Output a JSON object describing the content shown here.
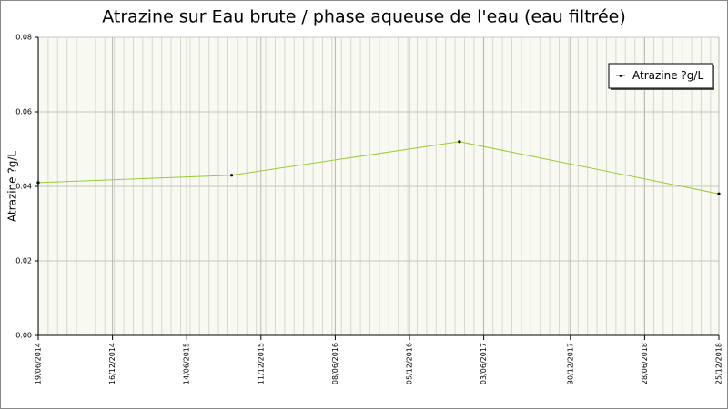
{
  "chart_data": {
    "type": "line",
    "title": "Atrazine sur Eau brute / phase aqueuse de l'eau (eau filtrée)",
    "y_label": "Atrazine ?g/L",
    "x": [
      "19/06/2014",
      "01/10/2015",
      "05/04/2017",
      "25/12/2018"
    ],
    "series": [
      {
        "name": "Atrazine ?g/L",
        "color": "#99cc33",
        "values": [
          0.041,
          0.043,
          0.052,
          0.038
        ]
      }
    ],
    "xlim": [
      "19/06/2014",
      "25/12/2018"
    ],
    "xticks": [
      "19/06/2014",
      "16/12/2014",
      "14/06/2015",
      "11/12/2015",
      "08/06/2016",
      "05/12/2016",
      "03/06/2017",
      "30/12/2017",
      "28/06/2018",
      "25/12/2018"
    ],
    "ylim": [
      0,
      0.08
    ],
    "yticks": [
      {
        "value": 0,
        "label": "0.00"
      },
      {
        "value": 0.02,
        "label": "0.02"
      },
      {
        "value": 0.04,
        "label": "0.04"
      },
      {
        "value": 0.06,
        "label": "0.06"
      },
      {
        "value": 0.08,
        "label": "0.08"
      }
    ],
    "grid": true,
    "legend": "top-right"
  }
}
